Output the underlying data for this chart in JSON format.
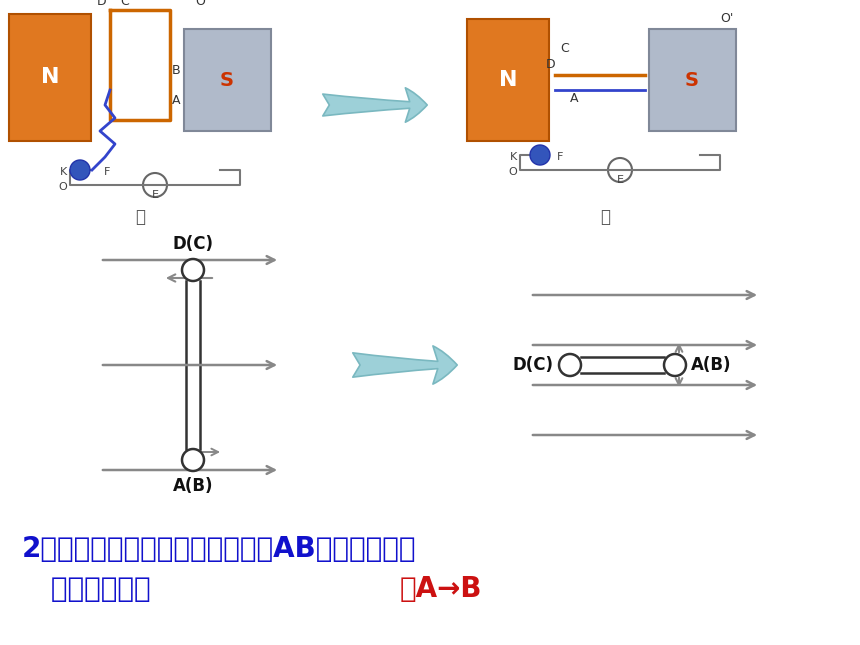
{
  "bg_color": "#ffffff",
  "title_line1": "2、在线圈由丙转到丁的过程中，AB边中电流向哪",
  "title_line2": "   个方向流动？",
  "answer_text": "由A→B",
  "title_color": "#1111cc",
  "answer_color": "#cc1111",
  "title_fontsize": 20,
  "answer_fontsize": 20,
  "cyan_arrow_color": "#9dd0d8",
  "cyan_arrow_edge": "#7ab8c0",
  "label_dc": "D(C)",
  "label_ab": "A(B)",
  "wire_color": "#333333",
  "field_arrow_color": "#888888",
  "bing_label": "丙",
  "ding_label": "丁"
}
